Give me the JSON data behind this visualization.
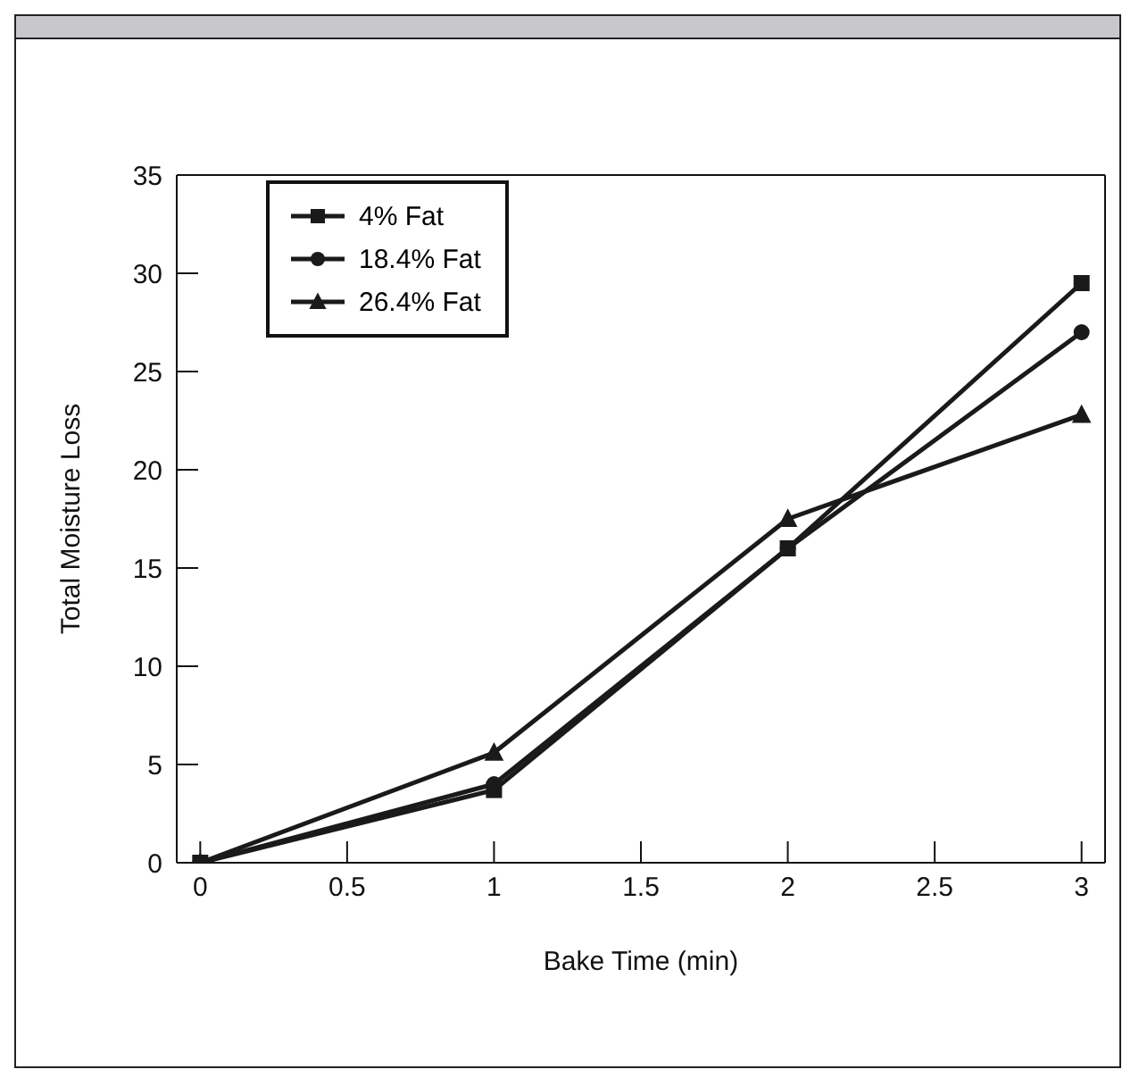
{
  "chart_data": {
    "type": "line",
    "xlabel": "Bake Time (min)",
    "ylabel": "Total Moisture Loss",
    "xlim": [
      -0.08,
      3.08
    ],
    "xticks": [
      0,
      0.5,
      1,
      1.5,
      2,
      2.5,
      3
    ],
    "ylim": [
      0,
      35
    ],
    "yticks": [
      0,
      5,
      10,
      15,
      20,
      25,
      30,
      35
    ],
    "legend": "top left",
    "line_style": "solid",
    "series": [
      {
        "name": "4% Fat",
        "color": "#1a1a1a",
        "marker": "square",
        "x": [
          0,
          1,
          2,
          3
        ],
        "values": [
          0,
          3.7,
          16,
          29.5
        ]
      },
      {
        "name": "18.4% Fat",
        "color": "#1a1a1a",
        "marker": "circle",
        "x": [
          0,
          1,
          2,
          3
        ],
        "values": [
          0,
          4,
          16,
          27
        ]
      },
      {
        "name": "26.4% Fat",
        "color": "#1a1a1a",
        "marker": "triangle",
        "x": [
          0,
          1,
          2,
          3
        ],
        "values": [
          0,
          5.6,
          17.5,
          22.8
        ]
      }
    ]
  }
}
